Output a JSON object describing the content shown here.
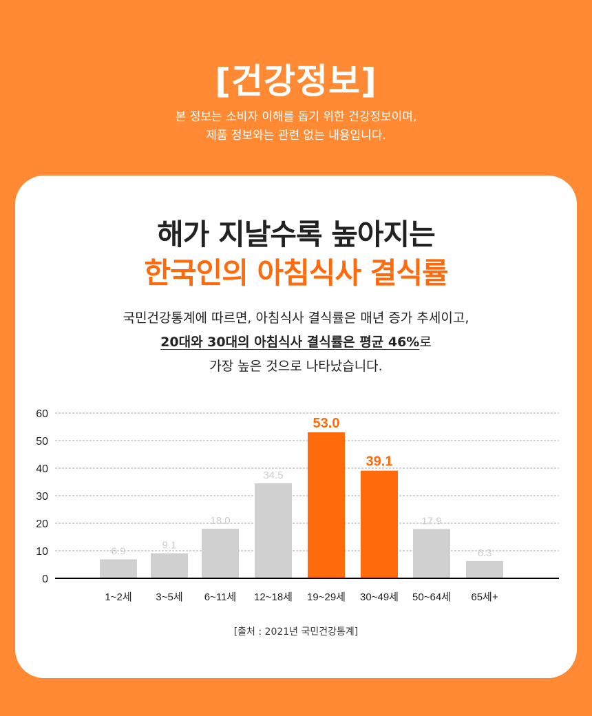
{
  "header": {
    "title": "[건강정보]",
    "subtitle_line1": "본 정보는 소비자 이해를 돕기 위한 건강정보이며,",
    "subtitle_line2": "제품 정보와는 관련 없는 내용입니다."
  },
  "card": {
    "headline_line1": "해가 지날수록 높아지는",
    "headline_line2": "한국인의 아침식사 결식률",
    "desc_line1": "국민건강통계에 따르면, 아침식사 결식률은 매년 증가 추세이고,",
    "desc_line2_bold": "20대와 30대의 아침식사 결식률은 평균 46%",
    "desc_line2_tail": "로",
    "desc_line3": "가장 높은 것으로 나타났습니다.",
    "source": "[출처 : 2021년 국민건강통계]"
  },
  "colors": {
    "background": "#FF8A33",
    "highlight": "#FF6A0D",
    "bar_default": "#D0D0D0"
  },
  "chart_data": {
    "type": "bar",
    "categories": [
      "1~2세",
      "3~5세",
      "6~11세",
      "12~18세",
      "19~29세",
      "30~49세",
      "50~64세",
      "65세+"
    ],
    "values": [
      6.9,
      9.1,
      18.0,
      34.5,
      53.0,
      39.1,
      17.9,
      6.3
    ],
    "value_labels": [
      "6.9",
      "9.1",
      "18.0",
      "34.5",
      "53.0",
      "39.1",
      "17.9",
      "6.3"
    ],
    "highlighted": [
      false,
      false,
      false,
      false,
      true,
      true,
      false,
      false
    ],
    "ylim": [
      0,
      60
    ],
    "yticks": [
      "0",
      "10",
      "20",
      "30",
      "40",
      "50",
      "60"
    ],
    "grid": true,
    "title": "",
    "xlabel": "",
    "ylabel": ""
  }
}
